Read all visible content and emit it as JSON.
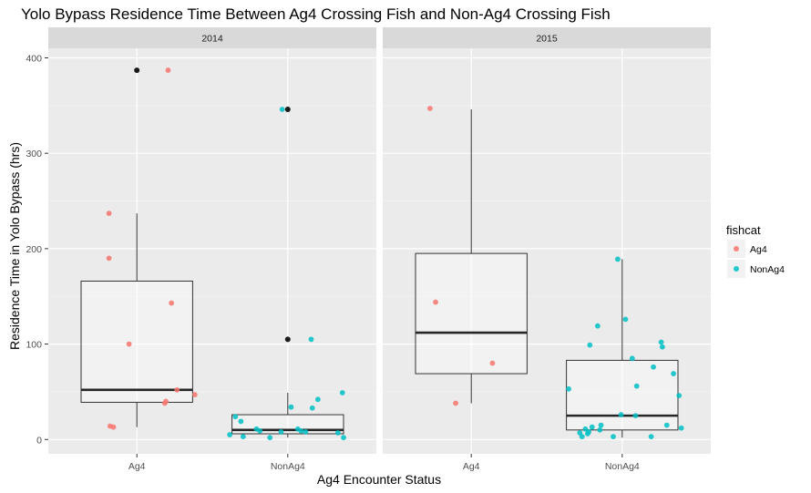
{
  "chart_data": {
    "type": "boxplot-jitter",
    "title": "Yolo Bypass Residence Time Between Ag4 Crossing Fish and Non-Ag4 Crossing Fish",
    "xlabel": "Ag4 Encounter Status",
    "ylabel": "Residence Time in Yolo Bypass (hrs)",
    "categories": [
      "Ag4",
      "NonAg4"
    ],
    "ylim": [
      -15,
      410
    ],
    "yticks": [
      "0",
      "100",
      "200",
      "300",
      "400"
    ],
    "legend": {
      "title": "fishcat",
      "placement": "right",
      "entries": [
        {
          "label": "Ag4",
          "color": "#F8766D"
        },
        {
          "label": "NonAg4",
          "color": "#00BFC4"
        }
      ]
    },
    "outlier_color": "#1a1a1a",
    "panels": [
      {
        "strip": "2014",
        "boxes": [
          {
            "category": "Ag4",
            "q1": 39,
            "median": 52,
            "q3": 166,
            "whisker_low": 13,
            "whisker_high": 237,
            "outliers": [
              387
            ]
          },
          {
            "category": "NonAg4",
            "q1": 6,
            "median": 10,
            "q3": 26,
            "whisker_low": 2,
            "whisker_high": 49,
            "outliers": [
              105,
              346
            ]
          }
        ],
        "points": [
          {
            "category": "Ag4",
            "series": "Ag4",
            "offset": 0.28,
            "y": 387
          },
          {
            "category": "Ag4",
            "series": "Ag4",
            "offset": -0.25,
            "y": 237
          },
          {
            "category": "Ag4",
            "series": "Ag4",
            "offset": -0.25,
            "y": 190
          },
          {
            "category": "Ag4",
            "series": "Ag4",
            "offset": 0.31,
            "y": 143
          },
          {
            "category": "Ag4",
            "series": "Ag4",
            "offset": -0.07,
            "y": 100
          },
          {
            "category": "Ag4",
            "series": "Ag4",
            "offset": 0.36,
            "y": 52
          },
          {
            "category": "Ag4",
            "series": "Ag4",
            "offset": 0.52,
            "y": 47
          },
          {
            "category": "Ag4",
            "series": "Ag4",
            "offset": 0.26,
            "y": 40
          },
          {
            "category": "Ag4",
            "series": "Ag4",
            "offset": 0.25,
            "y": 38
          },
          {
            "category": "Ag4",
            "series": "Ag4",
            "offset": -0.24,
            "y": 14
          },
          {
            "category": "Ag4",
            "series": "Ag4",
            "offset": -0.21,
            "y": 13
          },
          {
            "category": "NonAg4",
            "series": "NonAg4",
            "offset": -0.05,
            "y": 346
          },
          {
            "category": "NonAg4",
            "series": "NonAg4",
            "offset": 0.21,
            "y": 105
          },
          {
            "category": "NonAg4",
            "series": "NonAg4",
            "offset": 0.49,
            "y": 49
          },
          {
            "category": "NonAg4",
            "series": "NonAg4",
            "offset": 0.27,
            "y": 42
          },
          {
            "category": "NonAg4",
            "series": "NonAg4",
            "offset": 0.03,
            "y": 34
          },
          {
            "category": "NonAg4",
            "series": "NonAg4",
            "offset": 0.22,
            "y": 33
          },
          {
            "category": "NonAg4",
            "series": "NonAg4",
            "offset": -0.47,
            "y": 24
          },
          {
            "category": "NonAg4",
            "series": "NonAg4",
            "offset": -0.42,
            "y": 19
          },
          {
            "category": "NonAg4",
            "series": "NonAg4",
            "offset": -0.28,
            "y": 11
          },
          {
            "category": "NonAg4",
            "series": "NonAg4",
            "offset": 0.09,
            "y": 11
          },
          {
            "category": "NonAg4",
            "series": "NonAg4",
            "offset": -0.25,
            "y": 9
          },
          {
            "category": "NonAg4",
            "series": "NonAg4",
            "offset": 0.12,
            "y": 9
          },
          {
            "category": "NonAg4",
            "series": "NonAg4",
            "offset": 0.16,
            "y": 8
          },
          {
            "category": "NonAg4",
            "series": "NonAg4",
            "offset": -0.06,
            "y": 8
          },
          {
            "category": "NonAg4",
            "series": "NonAg4",
            "offset": 0.45,
            "y": 7
          },
          {
            "category": "NonAg4",
            "series": "NonAg4",
            "offset": -0.52,
            "y": 5
          },
          {
            "category": "NonAg4",
            "series": "NonAg4",
            "offset": -0.4,
            "y": 3
          },
          {
            "category": "NonAg4",
            "series": "NonAg4",
            "offset": -0.16,
            "y": 2
          },
          {
            "category": "NonAg4",
            "series": "NonAg4",
            "offset": 0.5,
            "y": 2
          }
        ]
      },
      {
        "strip": "2015",
        "boxes": [
          {
            "category": "Ag4",
            "q1": 69,
            "median": 112,
            "q3": 195,
            "whisker_low": 38,
            "whisker_high": 346,
            "outliers": []
          },
          {
            "category": "NonAg4",
            "q1": 10,
            "median": 25,
            "q3": 83,
            "whisker_low": 2,
            "whisker_high": 189,
            "outliers": []
          }
        ],
        "points": [
          {
            "category": "Ag4",
            "series": "Ag4",
            "offset": -0.37,
            "y": 347
          },
          {
            "category": "Ag4",
            "series": "Ag4",
            "offset": -0.32,
            "y": 144
          },
          {
            "category": "Ag4",
            "series": "Ag4",
            "offset": 0.19,
            "y": 80
          },
          {
            "category": "Ag4",
            "series": "Ag4",
            "offset": -0.14,
            "y": 38
          },
          {
            "category": "NonAg4",
            "series": "NonAg4",
            "offset": -0.04,
            "y": 189
          },
          {
            "category": "NonAg4",
            "series": "NonAg4",
            "offset": 0.03,
            "y": 126
          },
          {
            "category": "NonAg4",
            "series": "NonAg4",
            "offset": -0.22,
            "y": 119
          },
          {
            "category": "NonAg4",
            "series": "NonAg4",
            "offset": 0.35,
            "y": 102
          },
          {
            "category": "NonAg4",
            "series": "NonAg4",
            "offset": -0.29,
            "y": 99
          },
          {
            "category": "NonAg4",
            "series": "NonAg4",
            "offset": 0.36,
            "y": 97
          },
          {
            "category": "NonAg4",
            "series": "NonAg4",
            "offset": 0.09,
            "y": 85
          },
          {
            "category": "NonAg4",
            "series": "NonAg4",
            "offset": 0.28,
            "y": 76
          },
          {
            "category": "NonAg4",
            "series": "NonAg4",
            "offset": 0.46,
            "y": 69
          },
          {
            "category": "NonAg4",
            "series": "NonAg4",
            "offset": 0.13,
            "y": 56
          },
          {
            "category": "NonAg4",
            "series": "NonAg4",
            "offset": -0.48,
            "y": 53
          },
          {
            "category": "NonAg4",
            "series": "NonAg4",
            "offset": 0.51,
            "y": 46
          },
          {
            "category": "NonAg4",
            "series": "NonAg4",
            "offset": -0.01,
            "y": 26
          },
          {
            "category": "NonAg4",
            "series": "NonAg4",
            "offset": 0.12,
            "y": 25
          },
          {
            "category": "NonAg4",
            "series": "NonAg4",
            "offset": -0.19,
            "y": 15
          },
          {
            "category": "NonAg4",
            "series": "NonAg4",
            "offset": 0.4,
            "y": 15
          },
          {
            "category": "NonAg4",
            "series": "NonAg4",
            "offset": -0.27,
            "y": 13
          },
          {
            "category": "NonAg4",
            "series": "NonAg4",
            "offset": 0.53,
            "y": 12
          },
          {
            "category": "NonAg4",
            "series": "NonAg4",
            "offset": -0.33,
            "y": 11
          },
          {
            "category": "NonAg4",
            "series": "NonAg4",
            "offset": -0.2,
            "y": 10
          },
          {
            "category": "NonAg4",
            "series": "NonAg4",
            "offset": -0.3,
            "y": 8
          },
          {
            "category": "NonAg4",
            "series": "NonAg4",
            "offset": -0.38,
            "y": 7
          },
          {
            "category": "NonAg4",
            "series": "NonAg4",
            "offset": -0.31,
            "y": 6
          },
          {
            "category": "NonAg4",
            "series": "NonAg4",
            "offset": -0.36,
            "y": 3
          },
          {
            "category": "NonAg4",
            "series": "NonAg4",
            "offset": -0.08,
            "y": 3
          },
          {
            "category": "NonAg4",
            "series": "NonAg4",
            "offset": 0.26,
            "y": 3
          }
        ]
      }
    ]
  }
}
